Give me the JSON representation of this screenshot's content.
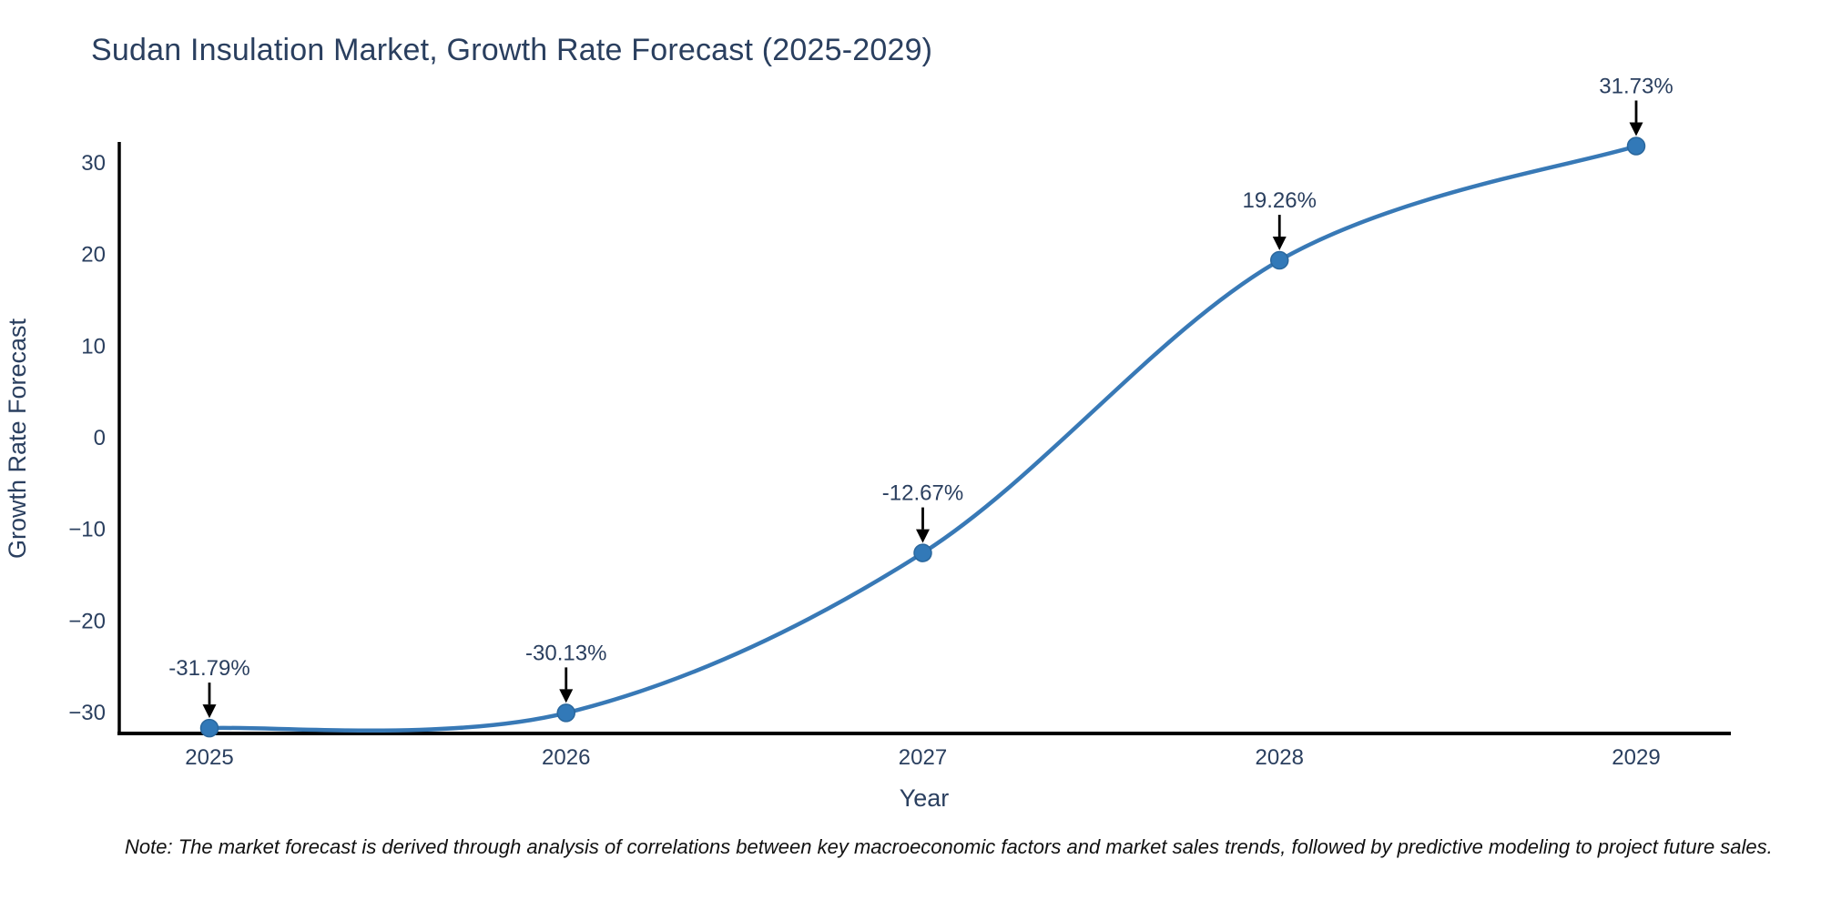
{
  "title": "Sudan Insulation Market, Growth Rate Forecast (2025-2029)",
  "note": "Note: The market forecast is derived through analysis of correlations between key macroeconomic factors and market sales trends, followed by predictive modeling to project future sales.",
  "chart_data": {
    "type": "line",
    "title": "Sudan Insulation Market, Growth Rate Forecast (2025-2029)",
    "xlabel": "Year",
    "ylabel": "Growth Rate Forecast",
    "x": [
      2025,
      2026,
      2027,
      2028,
      2029
    ],
    "series": [
      {
        "name": "Growth Rate Forecast",
        "values": [
          -31.79,
          -30.13,
          -12.67,
          19.26,
          31.73
        ]
      }
    ],
    "point_labels": [
      "-31.79%",
      "-30.13%",
      "-12.67%",
      "19.26%",
      "31.73%"
    ],
    "x_tick_labels": [
      "2025",
      "2026",
      "2027",
      "2028",
      "2029"
    ],
    "y_ticks": [
      30,
      20,
      10,
      0,
      -10,
      -20,
      -30
    ],
    "ylim": [
      -34,
      33
    ],
    "grid": false,
    "legend_position": "none",
    "line_shape": "spline",
    "colors": {
      "line": "#3879b6",
      "marker": "#3279b8",
      "marker_edge": "#2a679d",
      "axis": "#000000",
      "text": "#2a3f5f",
      "annotation_arrow": "#000000",
      "note_text": "#111111"
    }
  }
}
